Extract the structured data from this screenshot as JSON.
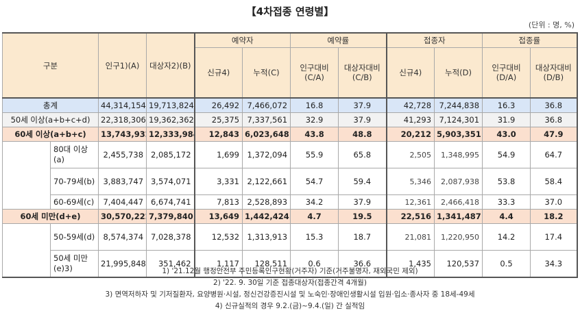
{
  "title": "【4차접종 연령별】",
  "unit": "(단위 : 명, %)",
  "headers": {
    "category": "구분",
    "population": "인구1)(A)",
    "target": "대상자2)(B)",
    "reservation_group": "예약자",
    "reservation_rate_group": "예약률",
    "vaccinated_group": "접종자",
    "vaccination_rate_group": "접종률",
    "new_res": "신규4)",
    "cum_res": "누적(C)",
    "res_rate_pop": "인구대비(C/A)",
    "res_rate_target": "대상자대비(C/B)",
    "new_vac": "신규4)",
    "cum_vac": "누적(D)",
    "vac_rate_pop": "인구대비(D/A)",
    "vac_rate_target": "대상자대비(D/B)"
  },
  "rows": [
    {
      "label": "총계",
      "pop": "44,314,154",
      "target": "19,713,824",
      "new_res": "26,492",
      "cum_res": "7,466,072",
      "rp": "16.8",
      "rt": "37.9",
      "new_vac": "42,728",
      "cum_vac": "7,244,838",
      "vp": "16.3",
      "vt": "36.8"
    },
    {
      "label": "50세 이상(a+b+c+d)",
      "pop": "22,318,306",
      "target": "19,362,362",
      "new_res": "25,375",
      "cum_res": "7,337,561",
      "rp": "32.9",
      "rt": "37.9",
      "new_vac": "41,293",
      "cum_vac": "7,124,301",
      "vp": "31.9",
      "vt": "36.8"
    },
    {
      "label": "60세 이상(a+b+c)",
      "pop": "13,743,932",
      "target": "12,333,984",
      "new_res": "12,843",
      "cum_res": "6,023,648",
      "rp": "43.8",
      "rt": "48.8",
      "new_vac": "20,212",
      "cum_vac": "5,903,351",
      "vp": "43.0",
      "vt": "47.9"
    },
    {
      "label": "80대 이상(a)",
      "pop": "2,455,738",
      "target": "2,085,172",
      "new_res": "1,699",
      "cum_res": "1,372,094",
      "rp": "55.9",
      "rt": "65.8",
      "new_vac": "2,505",
      "cum_vac": "1,348,995",
      "vp": "54.9",
      "vt": "64.7"
    },
    {
      "label": "70-79세(b)",
      "pop": "3,883,747",
      "target": "3,574,071",
      "new_res": "3,331",
      "cum_res": "2,122,661",
      "rp": "54.7",
      "rt": "59.4",
      "new_vac": "5,346",
      "cum_vac": "2,087,938",
      "vp": "53.8",
      "vt": "58.4"
    },
    {
      "label": "60-69세(c)",
      "pop": "7,404,447",
      "target": "6,674,741",
      "new_res": "7,813",
      "cum_res": "2,528,893",
      "rp": "34.2",
      "rt": "37.9",
      "new_vac": "12,361",
      "cum_vac": "2,466,418",
      "vp": "33.3",
      "vt": "37.0"
    },
    {
      "label": "60세 미만(d+e)",
      "pop": "30,570,222",
      "target": "7,379,840",
      "new_res": "13,649",
      "cum_res": "1,442,424",
      "rp": "4.7",
      "rt": "19.5",
      "new_vac": "22,516",
      "cum_vac": "1,341,487",
      "vp": "4.4",
      "vt": "18.2"
    },
    {
      "label": "50-59세(d)",
      "pop": "8,574,374",
      "target": "7,028,378",
      "new_res": "12,532",
      "cum_res": "1,313,913",
      "rp": "15.3",
      "rt": "18.7",
      "new_vac": "21,081",
      "cum_vac": "1,220,950",
      "vp": "14.2",
      "vt": "17.4"
    },
    {
      "label": "50세 미만(e)3)",
      "pop": "21,995,848",
      "target": "351,462",
      "new_res": "1,117",
      "cum_res": "128,511",
      "rp": "0.6",
      "rt": "36.6",
      "new_vac": "1,435",
      "cum_vac": "120,537",
      "vp": "0.5",
      "vt": "34.3"
    }
  ],
  "notes": [
    "1) '21.12월 행정안전부 주민등록인구현황(거주자) 기준(거주불명자, 재외국민 제외)",
    "2) '22. 9. 30일 기준 접종대상자(접종간격 4개월)",
    "3) 면역저하자 및 기저질환자, 요양병원·시설, 정신건강증진시설 및 노숙인·장애인생활시설 입원·입소·종사자 중 18세-49세",
    "4) 신규실적의 경우 9.2.(금)~9.4.(일) 간 실적임"
  ]
}
